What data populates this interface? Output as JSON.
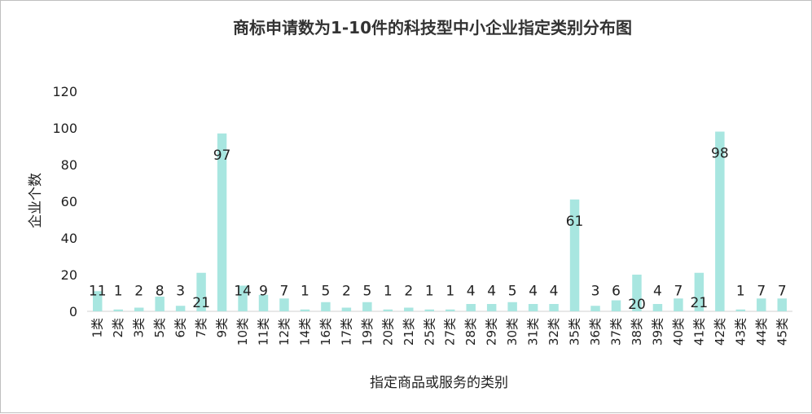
{
  "chart_data": {
    "type": "bar",
    "title": "商标申请数为1-10件的科技型中小企业指定类别分布图",
    "xlabel": "指定商品或服务的类别",
    "ylabel": "企业个数",
    "ylim": [
      0,
      120
    ],
    "yticks": [
      0,
      20,
      40,
      60,
      80,
      100,
      120
    ],
    "grid": false,
    "bar_color": "#a8e6e0",
    "categories": [
      "1类",
      "2类",
      "3类",
      "5类",
      "6类",
      "7类",
      "9类",
      "10类",
      "11类",
      "12类",
      "14类",
      "16类",
      "17类",
      "19类",
      "20类",
      "21类",
      "25类",
      "27类",
      "28类",
      "29类",
      "30类",
      "31类",
      "32类",
      "35类",
      "36类",
      "37类",
      "38类",
      "39类",
      "40类",
      "41类",
      "42类",
      "43类",
      "44类",
      "45类"
    ],
    "values": [
      11,
      1,
      2,
      8,
      3,
      21,
      97,
      14,
      9,
      7,
      1,
      5,
      2,
      5,
      1,
      2,
      1,
      1,
      4,
      4,
      5,
      4,
      4,
      61,
      3,
      6,
      20,
      4,
      7,
      21,
      98,
      1,
      7,
      7
    ],
    "data_labels": [
      "11",
      "1",
      "2",
      "8",
      "3",
      "21",
      "97",
      "14",
      "9",
      "7",
      "1",
      "5",
      "2",
      "5",
      "1",
      "2",
      "1",
      "1",
      "4",
      "4",
      "5",
      "4",
      "4",
      "61",
      "3",
      "6",
      "20",
      "4",
      "7",
      "21",
      "98",
      "1",
      "7",
      "7"
    ]
  }
}
